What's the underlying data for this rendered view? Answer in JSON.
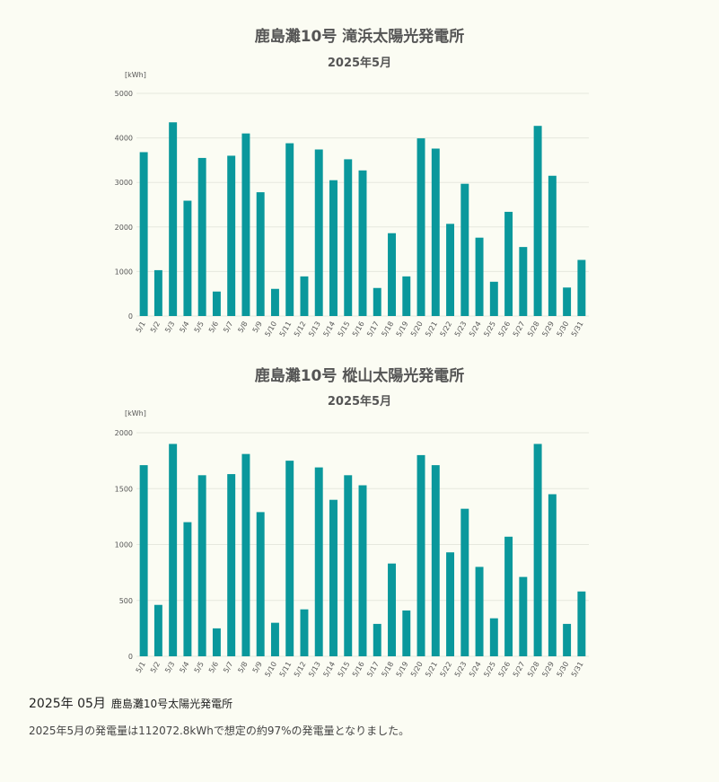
{
  "colors": {
    "bar": "#0a989c",
    "grid": "#e6e8de",
    "axis_text": "#555555",
    "background": "#fbfcf3"
  },
  "chart_data": [
    {
      "type": "bar",
      "title": "鹿島灘10号 滝浜太陽光発電所",
      "subtitle": "2025年5月",
      "ylabel": "[kWh]",
      "xlabel": "",
      "ylim": [
        0,
        5000
      ],
      "yticks": [
        0,
        1000,
        2000,
        3000,
        4000,
        5000
      ],
      "grid": true,
      "categories": [
        "5/1",
        "5/2",
        "5/3",
        "5/4",
        "5/5",
        "5/6",
        "5/7",
        "5/8",
        "5/9",
        "5/10",
        "5/11",
        "5/12",
        "5/13",
        "5/14",
        "5/15",
        "5/16",
        "5/17",
        "5/18",
        "5/19",
        "5/20",
        "5/21",
        "5/22",
        "5/23",
        "5/24",
        "5/25",
        "5/26",
        "5/27",
        "5/28",
        "5/29",
        "5/30",
        "5/31"
      ],
      "values": [
        3680,
        1030,
        4350,
        2590,
        3550,
        550,
        3600,
        4100,
        2780,
        610,
        3880,
        890,
        3740,
        3050,
        3520,
        3270,
        630,
        1860,
        890,
        3990,
        3760,
        2070,
        2970,
        1760,
        770,
        2340,
        1550,
        4270,
        3150,
        640,
        1260
      ]
    },
    {
      "type": "bar",
      "title": "鹿島灘10号 樅山太陽光発電所",
      "subtitle": "2025年5月",
      "ylabel": "[kWh]",
      "xlabel": "",
      "ylim": [
        0,
        2000
      ],
      "yticks": [
        0,
        500,
        1000,
        1500,
        2000
      ],
      "grid": true,
      "categories": [
        "5/1",
        "5/2",
        "5/3",
        "5/4",
        "5/5",
        "5/6",
        "5/7",
        "5/8",
        "5/9",
        "5/10",
        "5/11",
        "5/12",
        "5/13",
        "5/14",
        "5/15",
        "5/16",
        "5/17",
        "5/18",
        "5/19",
        "5/20",
        "5/21",
        "5/22",
        "5/23",
        "5/24",
        "5/25",
        "5/26",
        "5/27",
        "5/28",
        "5/29",
        "5/30",
        "5/31"
      ],
      "values": [
        1710,
        460,
        1900,
        1200,
        1620,
        250,
        1630,
        1810,
        1290,
        300,
        1750,
        420,
        1690,
        1400,
        1620,
        1530,
        290,
        830,
        410,
        1800,
        1710,
        930,
        1320,
        800,
        340,
        1070,
        710,
        1900,
        1450,
        290,
        580
      ]
    }
  ],
  "footer": {
    "month": "2025年 05月",
    "plant": "鹿島灘10号太陽光発電所",
    "note": "2025年5月の発電量は112072.8kWhで想定の約97%の発電量となりました。"
  }
}
